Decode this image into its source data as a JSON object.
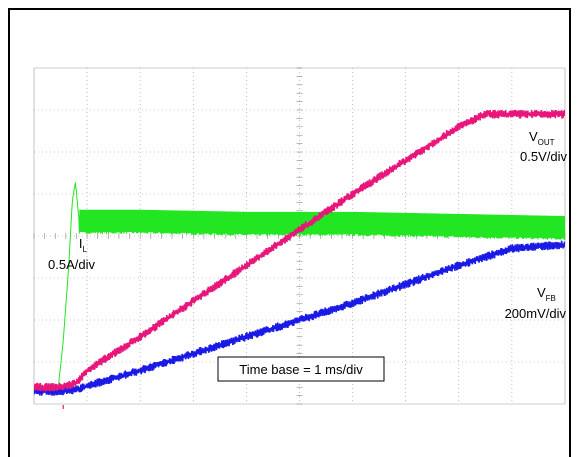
{
  "chart_data": {
    "type": "line",
    "title": "",
    "grid": true,
    "x_divisions": 10,
    "y_divisions": 8,
    "time_base_label": "Time base = 1 ms/div",
    "series": [
      {
        "name_main": "V",
        "name_sub": "OUT",
        "scale": "0.5V/div",
        "color": "#e8157a",
        "x": [
          0,
          0.5,
          0.8,
          1.0,
          2.0,
          4.0,
          6.0,
          8.0,
          8.5,
          10.0
        ],
        "y": [
          0.4,
          0.4,
          0.5,
          0.8,
          1.6,
          3.3,
          5.0,
          6.6,
          6.9,
          6.9
        ],
        "noise": 0.08
      },
      {
        "name_main": "V",
        "name_sub": "FB",
        "scale": "200mV/div",
        "color": "#1a1ae6",
        "x": [
          0,
          0.5,
          0.8,
          2.0,
          4.0,
          6.0,
          8.0,
          9.0,
          10.0
        ],
        "y": [
          0.3,
          0.3,
          0.35,
          0.8,
          1.6,
          2.4,
          3.3,
          3.7,
          3.8
        ],
        "noise": 0.08
      },
      {
        "name_main": "I",
        "name_sub": "L",
        "scale": "0.5A/div",
        "color": "#22e622",
        "x": [
          0,
          0.45,
          0.55,
          0.65,
          0.72,
          0.78,
          0.85,
          2.0,
          4.0,
          6.0,
          8.0,
          10.0
        ],
        "y": [
          0.3,
          0.3,
          1.5,
          3.2,
          4.8,
          5.3,
          4.35,
          4.35,
          4.3,
          4.3,
          4.25,
          4.2
        ],
        "band": 0.55
      }
    ]
  }
}
